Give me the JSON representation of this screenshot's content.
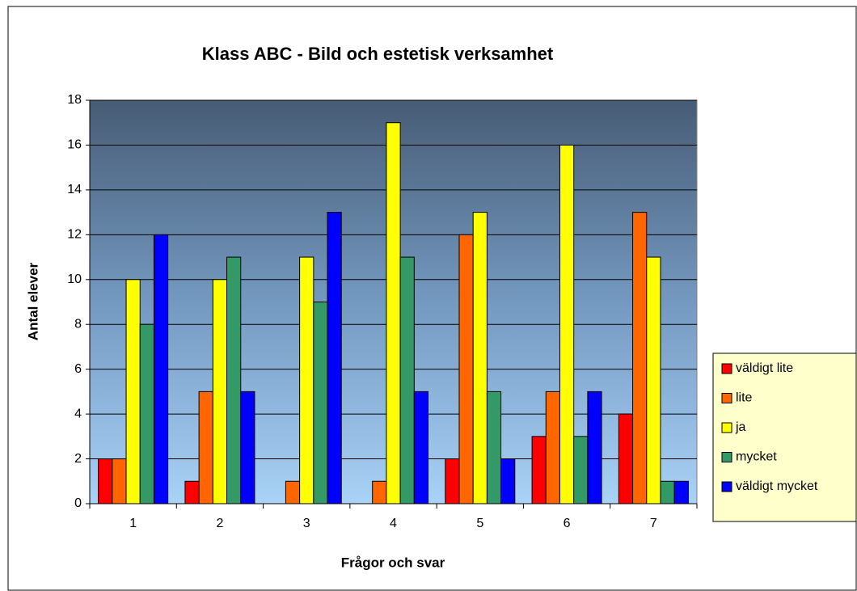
{
  "chart_data": {
    "type": "bar",
    "title": "Klass ABC - Bild och estetisk verksamhet",
    "x_label": "Frågor och svar",
    "y_label": "Antal elever",
    "categories": [
      "1",
      "2",
      "3",
      "4",
      "5",
      "6",
      "7"
    ],
    "series": [
      {
        "name": "väldigt lite",
        "color": "#ff0000",
        "values": [
          2,
          1,
          0,
          0,
          2,
          3,
          4
        ]
      },
      {
        "name": "lite",
        "color": "#ff6600",
        "values": [
          2,
          5,
          1,
          1,
          12,
          5,
          13
        ]
      },
      {
        "name": "ja",
        "color": "#ffff00",
        "values": [
          10,
          10,
          11,
          17,
          13,
          16,
          11
        ]
      },
      {
        "name": "mycket",
        "color": "#339966",
        "values": [
          8,
          11,
          9,
          11,
          5,
          3,
          1
        ]
      },
      {
        "name": "väldigt mycket",
        "color": "#0000ff",
        "values": [
          12,
          5,
          13,
          5,
          2,
          5,
          1
        ]
      }
    ],
    "ylim": [
      0,
      18
    ],
    "yticks": [
      0,
      2,
      4,
      6,
      8,
      10,
      12,
      14,
      16,
      18
    ],
    "grid": true,
    "legend": "right"
  }
}
